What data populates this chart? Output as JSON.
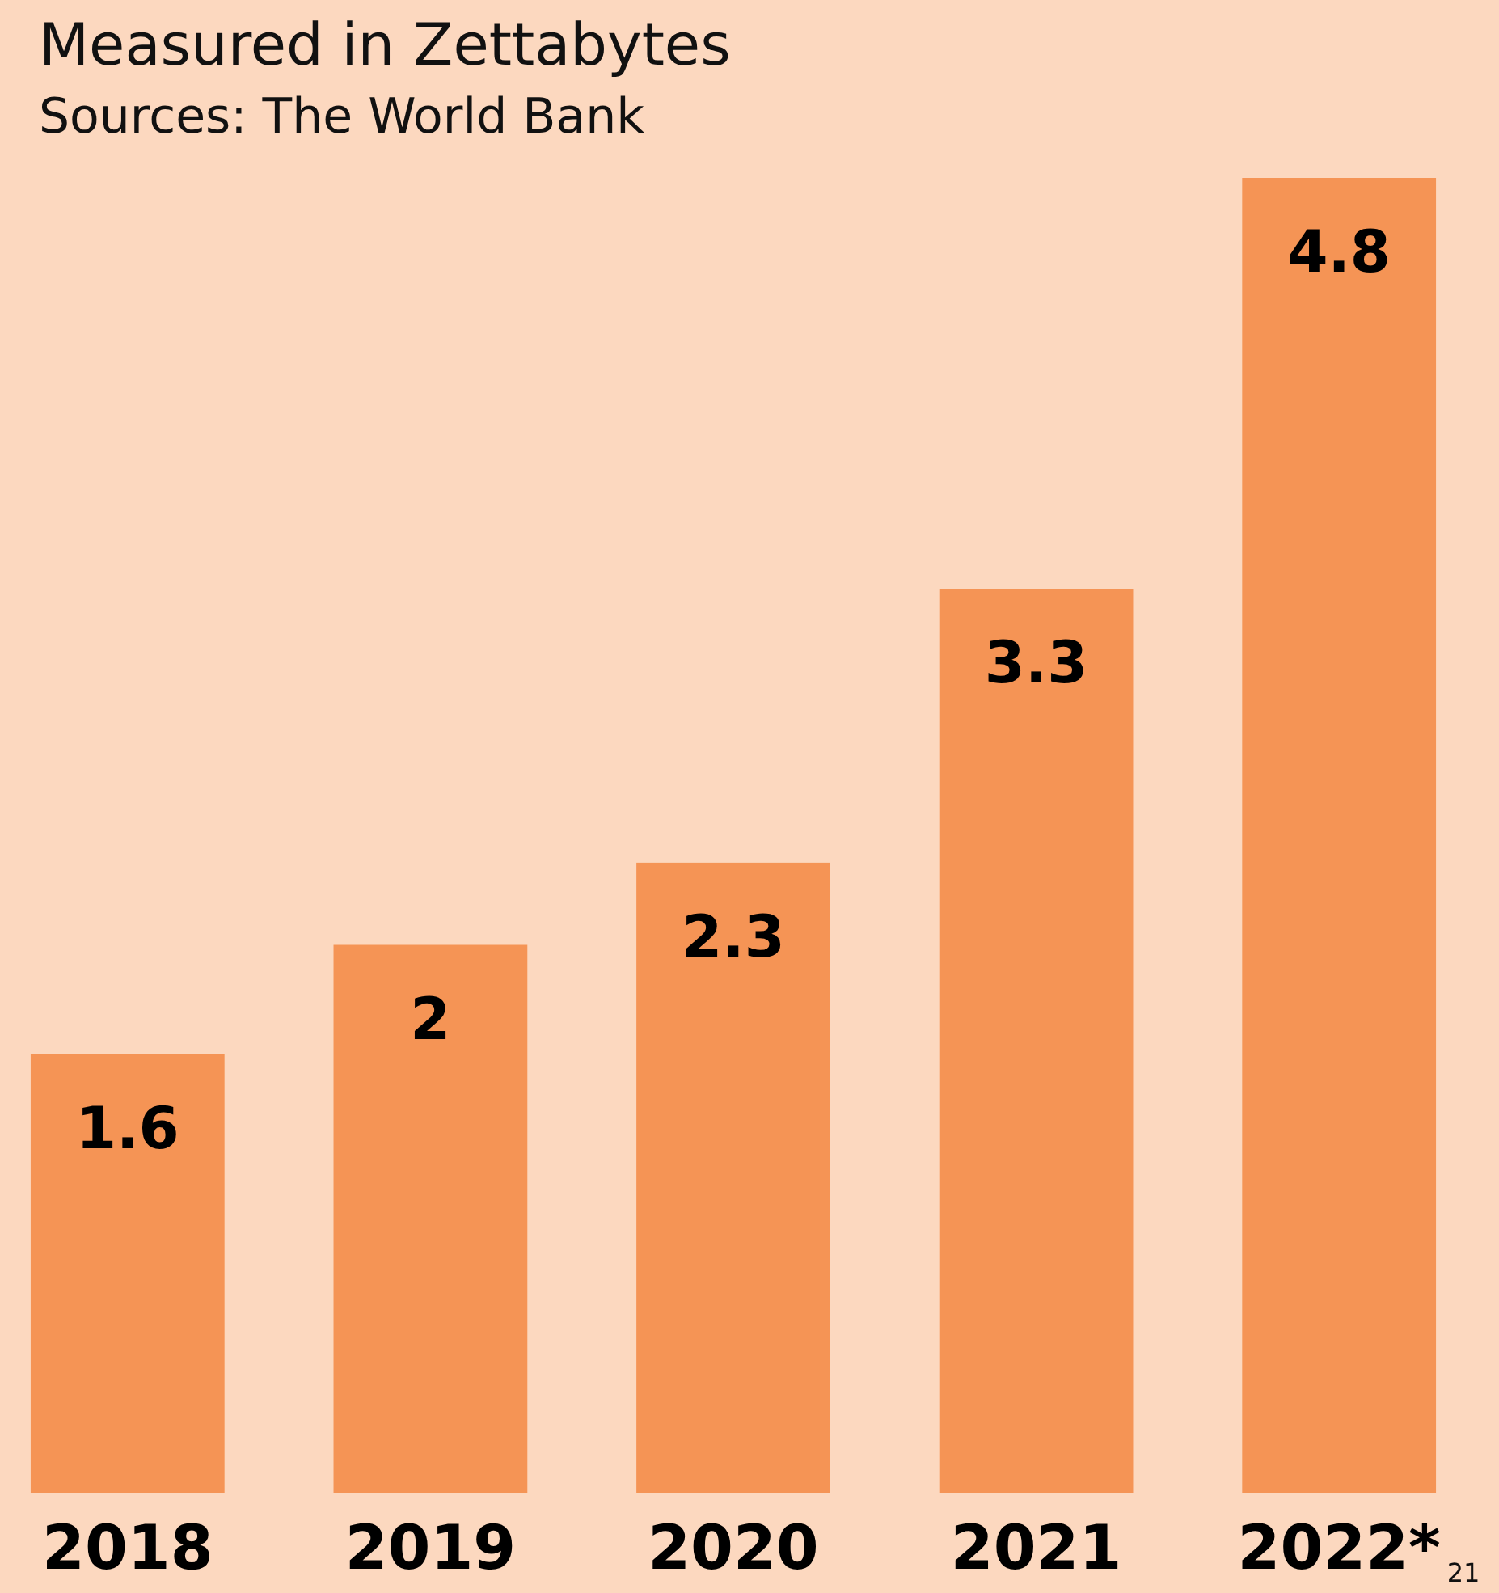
{
  "chart_data": {
    "type": "bar",
    "title": "Measured in Zettabytes",
    "annotations": [
      "Sources: The World Bank",
      "21"
    ],
    "categories": [
      "2018",
      "2019",
      "2020",
      "2021",
      "2022*"
    ],
    "values": [
      1.6,
      2,
      2.3,
      3.3,
      4.8
    ],
    "color": "#f59455",
    "data_labels": true
  }
}
